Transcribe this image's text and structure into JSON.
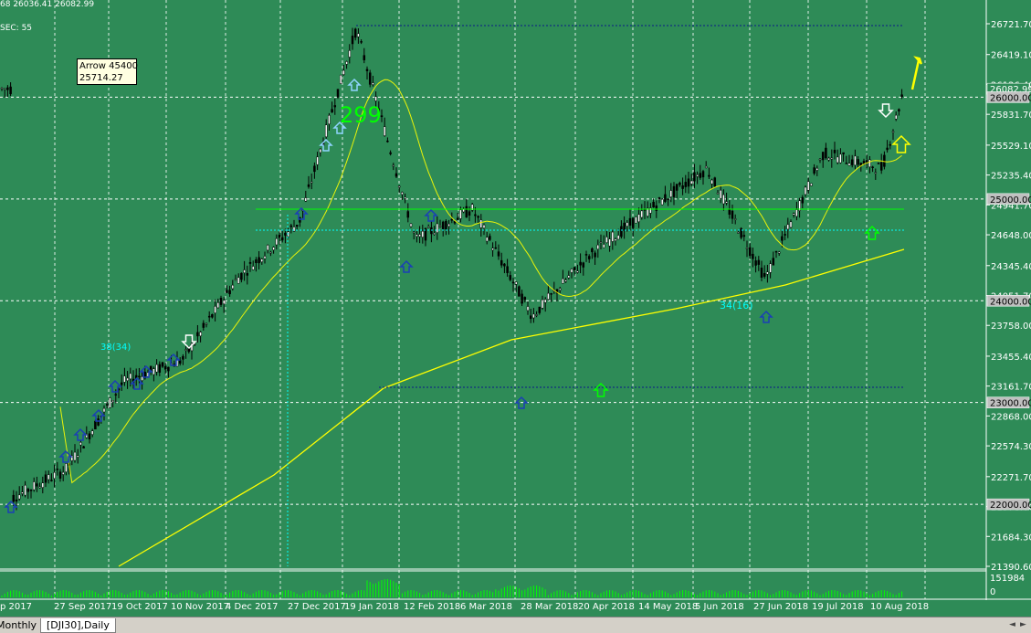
{
  "header": {
    "quote_line": "68 26036.41 26082.99",
    "sec_line": "SEC: 55"
  },
  "tooltip": {
    "line1": "Arrow 45400",
    "line2": "25714.27"
  },
  "tabs": [
    {
      "label": "Monthly"
    },
    {
      "label": "[DJI30],Daily"
    }
  ],
  "colors": {
    "background": "#2e8b57",
    "bull": "#000000",
    "bear": "#000000",
    "ma_fast": "#ffff00",
    "ma_slow": "#ffff00",
    "level": "#ffffff",
    "arrow_blue": "#1a3fb5",
    "arrow_light": "#8fd4ff",
    "arrow_yellow": "#ffff00",
    "label_green": "#00ff00",
    "label_cyan": "#00ffff"
  },
  "chart_data": {
    "type": "candlestick",
    "symbol": "DJI30",
    "timeframe": "Daily",
    "y_ticks": [
      "26721.70",
      "26419.10",
      "26126.40",
      "25831.70",
      "25529.10",
      "25235.40",
      "24941.70",
      "24648.00",
      "24345.40",
      "24051.70",
      "23758.00",
      "23455.40",
      "23161.70",
      "22868.00",
      "22574.30",
      "22271.70",
      "21978.00",
      "21684.30",
      "21390.60"
    ],
    "ylim": [
      21390.6,
      26721.7
    ],
    "x_labels": [
      "p 2017",
      "27 Sep 2017",
      "19 Oct 2017",
      "10 Nov 2017",
      "4 Dec 2017",
      "27 Dec 2017",
      "19 Jan 2018",
      "12 Feb 2018",
      "6 Mar 2018",
      "28 Mar 2018",
      "20 Apr 2018",
      "14 May 2018",
      "5 Jun 2018",
      "27 Jun 2018",
      "19 Jul 2018",
      "10 Aug 2018"
    ],
    "grid": true,
    "close_series": [
      {
        "date": "p 2017",
        "value": 22060
      },
      {
        "date": "27 Sep 2017",
        "value": 22340
      },
      {
        "date": "19 Oct 2017",
        "value": 23200
      },
      {
        "date": "10 Nov 2017",
        "value": 23420
      },
      {
        "date": "4 Dec 2017",
        "value": 24220
      },
      {
        "date": "27 Dec 2017",
        "value": 24780
      },
      {
        "date": "19 Jan 2018",
        "value": 26670
      },
      {
        "date": "12 Feb 2018",
        "value": 24600
      },
      {
        "date": "6 Mar 2018",
        "value": 24900
      },
      {
        "date": "28 Mar 2018",
        "value": 23850
      },
      {
        "date": "20 Apr 2018",
        "value": 24450
      },
      {
        "date": "14 May 2018",
        "value": 24900
      },
      {
        "date": "5 Jun 2018",
        "value": 25300
      },
      {
        "date": "27 Jun 2018",
        "value": 24220
      },
      {
        "date": "19 Jul 2018",
        "value": 25450
      },
      {
        "date": "10 Aug 2018",
        "value": 25300
      },
      {
        "date": "last",
        "value": 26083
      }
    ],
    "price_tags": [
      "26082.99",
      "26000.00",
      "25000.00",
      "24000.00",
      "23000.00",
      "22000.00"
    ],
    "horizontal_levels": [
      26000,
      25000,
      24000,
      23000,
      22000
    ],
    "indicator": {
      "name": "Volume",
      "ticks": [
        "151984",
        "0"
      ]
    },
    "annotations": [
      {
        "text": "299",
        "color": "#00ff00"
      },
      {
        "text": "38(34)",
        "color": "#00ffff"
      },
      {
        "text": "34(16)",
        "color": "#00ffff"
      }
    ]
  }
}
